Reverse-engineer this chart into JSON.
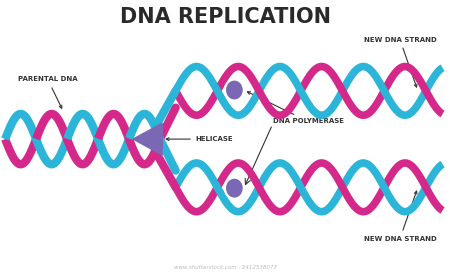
{
  "title": "DNA REPLICATION",
  "title_fontsize": 15,
  "title_weight": "bold",
  "bg_color": "#ffffff",
  "cyan_color": "#2BB5D8",
  "magenta_color": "#D4298A",
  "purple_color": "#7B68B5",
  "rung_color": "#c8c8c8",
  "text_color": "#444444",
  "dark_color": "#2a2a2a",
  "label_fontsize": 5.0,
  "labels": {
    "parental_dna": "PARENTAL DNA",
    "helicase": "HELICASE",
    "dna_polymerase": "DNA POLYMERASE",
    "new_dna_top": "NEW DNA STRAND",
    "new_dna_bot": "NEW DNA STRAND"
  },
  "watermark": "www.shutterstock.com · 2412538073"
}
